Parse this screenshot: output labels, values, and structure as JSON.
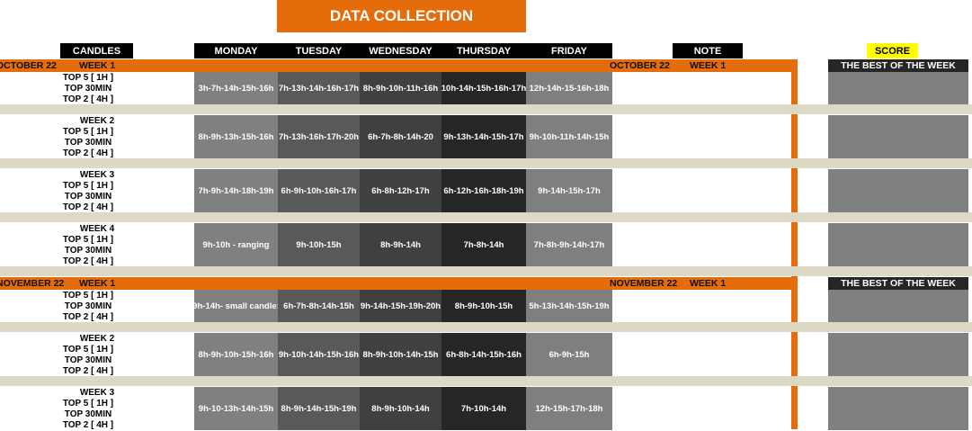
{
  "title": "DATA COLLECTION",
  "headers": {
    "candles": "CANDLES",
    "days": [
      "MONDAY",
      "TUESDAY",
      "WEDNESDAY",
      "THURSDAY",
      "FRIDAY"
    ],
    "note": "NOTE",
    "score": "SCORE"
  },
  "row_labels": [
    "TOP 5 [ 1H ]",
    "TOP 30MIN",
    "TOP 2 [ 4H ]"
  ],
  "best_of_week": "THE BEST OF THE WEEK",
  "months": [
    {
      "name": "OCTOBER 22",
      "weeks": [
        {
          "label": "WEEK 1",
          "cells": [
            "3h-7h-14h-15h-16h",
            "7h-13h-14h-16h-17h",
            "8h-9h-10h-11h-16h",
            "10h-14h-15h-16h-17h",
            "12h-14h-15-16h-18h"
          ]
        },
        {
          "label": "WEEK 2",
          "cells": [
            "8h-9h-13h-15h-16h",
            "7h-13h-16h-17h-20h",
            "6h-7h-8h-14h-20",
            "9h-13h-14h-15h-17h",
            "9h-10h-11h-14h-15h"
          ]
        },
        {
          "label": "WEEK 3",
          "cells": [
            "7h-9h-14h-18h-19h",
            "6h-9h-10h-16h-17h",
            "6h-8h-12h-17h",
            "6h-12h-16h-18h-19h",
            "9h-14h-15h-17h"
          ]
        },
        {
          "label": "WEEK 4",
          "cells": [
            "9h-10h - ranging",
            "9h-10h-15h",
            "8h-9h-14h",
            "7h-8h-14h",
            "7h-8h-9h-14h-17h"
          ]
        }
      ]
    },
    {
      "name": "NOVEMBER 22",
      "weeks": [
        {
          "label": "WEEK 1",
          "cells": [
            "9h-14h- small candle:",
            "6h-7h-8h-14h-15h",
            "9h-14h-15h-19h-20h",
            "8h-9h-10h-15h",
            "5h-13h-14h-15h-19h"
          ]
        },
        {
          "label": "WEEK 2",
          "cells": [
            "8h-9h-10h-15h-16h",
            "9h-10h-14h-15h-16h",
            "8h-9h-10h-14h-15h",
            "6h-8h-14h-15h-16h",
            "6h-9h-15h"
          ]
        },
        {
          "label": "WEEK 3",
          "cells": [
            "9h-10-13h-14h-15h",
            "8h-9h-14h-15h-19h",
            "8h-9h-10h-14h",
            "7h-10h-14h",
            "12h-15h-17h-18h"
          ]
        }
      ]
    }
  ]
}
